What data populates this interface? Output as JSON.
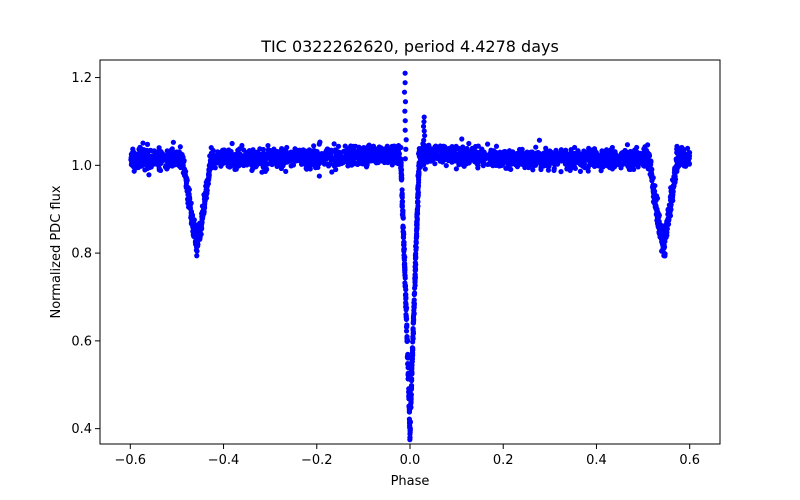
{
  "chart_data": {
    "type": "scatter",
    "title": "TIC 0322262620, period 4.4278 days",
    "xlabel": "Phase",
    "ylabel": "Normalized PDC flux",
    "xlim": [
      -0.665,
      0.665
    ],
    "ylim": [
      0.365,
      1.24
    ],
    "xticks": [
      -0.6,
      -0.4,
      -0.2,
      0.0,
      0.2,
      0.4,
      0.6
    ],
    "xtick_labels": [
      "−0.6",
      "−0.4",
      "−0.2",
      "0.0",
      "0.2",
      "0.4",
      "0.6"
    ],
    "yticks": [
      0.4,
      0.6,
      0.8,
      1.0,
      1.2
    ],
    "ytick_labels": [
      "0.4",
      "0.6",
      "0.8",
      "1.0",
      "1.2"
    ],
    "grid": false,
    "legend": null,
    "color": "#0000ff",
    "series": [
      {
        "name": "flux",
        "x_range": [
          -0.6,
          0.6
        ],
        "baseline": 1.015,
        "scatter": 0.02,
        "primary_eclipse": {
          "phase": 0.0,
          "min_flux": 0.38,
          "half_width": 0.02
        },
        "secondary_eclipses": [
          {
            "phase": -0.457,
            "min_flux": 0.82,
            "half_width": 0.03
          },
          {
            "phase": 0.543,
            "min_flux": 0.82,
            "half_width": 0.03
          }
        ],
        "pre_eclipse_peak": {
          "phase": -0.01,
          "max_flux": 1.21
        },
        "post_eclipse_peak": {
          "phase": 0.03,
          "max_flux": 1.11
        }
      }
    ]
  }
}
